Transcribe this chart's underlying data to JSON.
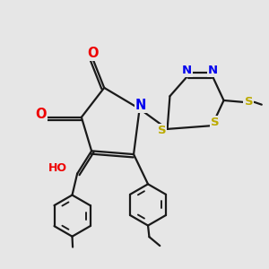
{
  "bg": "#e6e6e6",
  "bond_color": "#1a1a1a",
  "bond_lw": 1.6,
  "atom_colors": {
    "N": "#0000ee",
    "O": "#ee0000",
    "S": "#bbaa00",
    "H": "#008888"
  },
  "font_size": 9.5
}
